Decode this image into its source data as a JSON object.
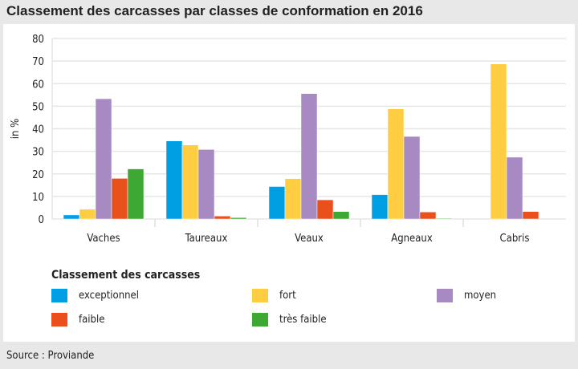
{
  "title": "Classement des carcasses par classes de conformation en 2016",
  "source": "Source : Proviande",
  "chart_data": {
    "type": "bar",
    "title": "Classement des carcasses par classes de conformation en 2016",
    "ylabel": "in %",
    "xlabel": "",
    "ylim": [
      0,
      80
    ],
    "yticks": [
      "0",
      "10",
      "20",
      "30",
      "40",
      "50",
      "60",
      "70",
      "80"
    ],
    "categories": [
      "Vaches",
      "Taureaux",
      "Veaux",
      "Agneaux",
      "Cabris"
    ],
    "legend_title": "Classement des carcasses",
    "legend_position": "bottom",
    "grid": true,
    "series": [
      {
        "name": "exceptionnel",
        "color": "#009fe3",
        "values": [
          1.8,
          34.6,
          14.4,
          10.8,
          0
        ]
      },
      {
        "name": "fort",
        "color": "#fecd41",
        "values": [
          4.3,
          32.8,
          17.9,
          48.8,
          68.7
        ]
      },
      {
        "name": "moyen",
        "color": "#a68ac1",
        "values": [
          53.3,
          30.8,
          55.6,
          36.6,
          27.4
        ]
      },
      {
        "name": "faible",
        "color": "#e9501c",
        "values": [
          18.0,
          1.3,
          8.5,
          3.1,
          3.3
        ]
      },
      {
        "name": "très faible",
        "color": "#3ea835",
        "values": [
          22.2,
          0.6,
          3.3,
          0.3,
          0
        ]
      }
    ]
  }
}
